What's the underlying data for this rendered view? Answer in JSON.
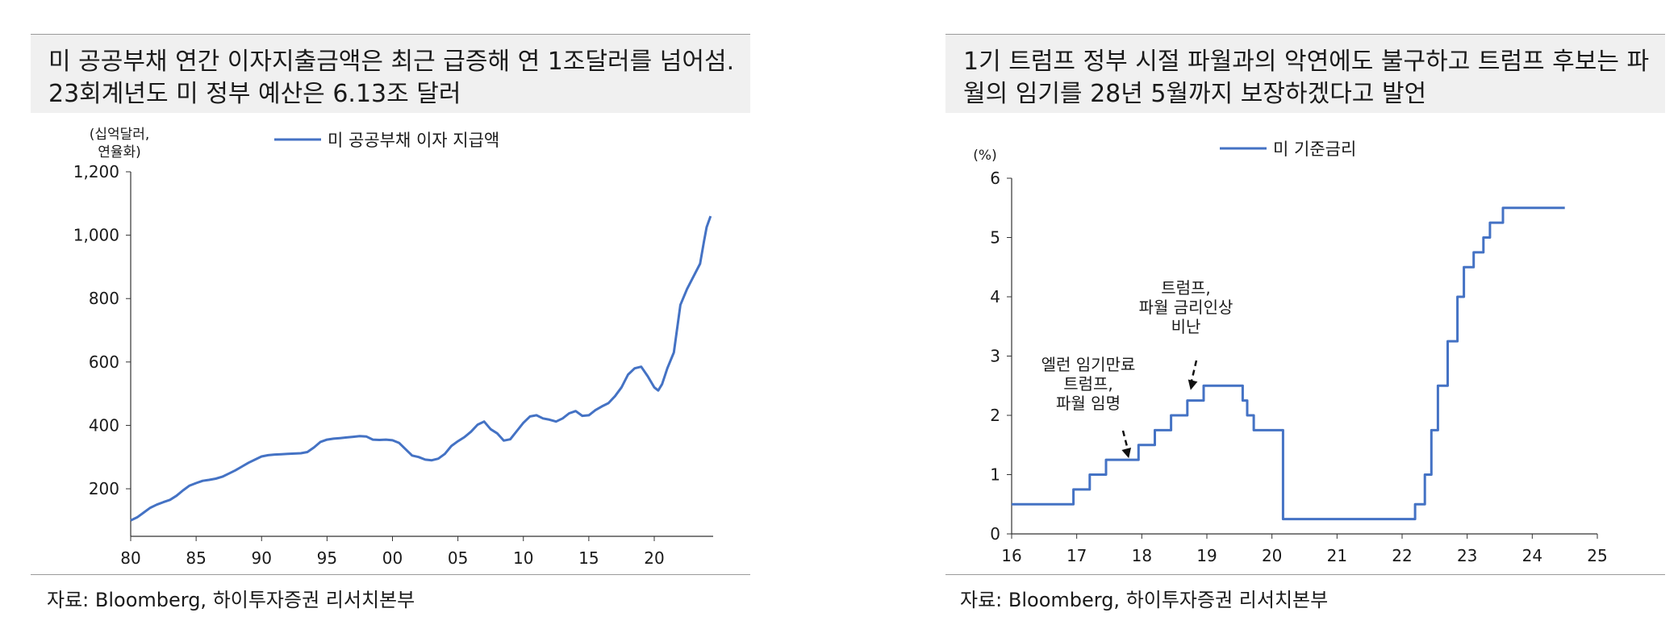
{
  "panels": {
    "left": {
      "title_line1": "미 공공부채 연간 이자지출금액은 최근 급증해 연 1조달러를 넘어섬.",
      "title_line2": "23회계년도 미 정부 예산은 6.13조 달러",
      "source": "자료: Bloomberg, 하이투자증권 리서치본부"
    },
    "right": {
      "title_line1": "1기 트럼프 정부 시절 파월과의 악연에도 불구하고 트럼프 후보는 파",
      "title_line2": "월의 임기를 28년 5월까지 보장하겠다고 발언",
      "source": "자료: Bloomberg, 하이투자증권 리서치본부"
    }
  },
  "chart_data": [
    {
      "type": "line",
      "ylabel": "(십억달러,\n연율화)",
      "ylabel_lines": [
        "(십억달러,",
        "연율화)"
      ],
      "legend": "미 공공부채 이자 지급액",
      "legend_position": "top-center",
      "color": "#4472c4",
      "xlim": [
        1980,
        2024.5
      ],
      "ylim": [
        50,
        1200
      ],
      "x_ticks": [
        1980,
        1985,
        1990,
        1995,
        2000,
        2005,
        2010,
        2015,
        2020
      ],
      "x_tick_labels": [
        "80",
        "85",
        "90",
        "95",
        "00",
        "05",
        "10",
        "15",
        "20"
      ],
      "y_ticks": [
        200,
        400,
        600,
        800,
        1000,
        1200
      ],
      "y_tick_labels": [
        "200",
        "400",
        "600",
        "800",
        "1,000",
        "1,200"
      ],
      "grid": false,
      "series": [
        {
          "name": "미 공공부채 이자 지급액",
          "x": [
            1980.0,
            1980.5,
            1981.0,
            1981.5,
            1982.0,
            1982.5,
            1983.0,
            1983.5,
            1984.0,
            1984.5,
            1985.0,
            1985.5,
            1986.0,
            1986.5,
            1987.0,
            1987.5,
            1988.0,
            1988.5,
            1989.0,
            1989.5,
            1990.0,
            1990.5,
            1991.0,
            1991.5,
            1992.0,
            1992.5,
            1993.0,
            1993.5,
            1994.0,
            1994.5,
            1995.0,
            1995.5,
            1996.0,
            1996.5,
            1997.0,
            1997.5,
            1998.0,
            1998.5,
            1999.0,
            1999.5,
            2000.0,
            2000.5,
            2001.0,
            2001.5,
            2002.0,
            2002.5,
            2003.0,
            2003.5,
            2004.0,
            2004.5,
            2005.0,
            2005.5,
            2006.0,
            2006.5,
            2007.0,
            2007.5,
            2008.0,
            2008.5,
            2009.0,
            2009.5,
            2010.0,
            2010.5,
            2011.0,
            2011.5,
            2012.0,
            2012.5,
            2013.0,
            2013.5,
            2014.0,
            2014.5,
            2015.0,
            2015.5,
            2016.0,
            2016.5,
            2017.0,
            2017.5,
            2018.0,
            2018.5,
            2019.0,
            2019.5,
            2020.0,
            2020.3,
            2020.6,
            2021.0,
            2021.5,
            2022.0,
            2022.5,
            2023.0,
            2023.5,
            2023.8,
            2024.0,
            2024.3
          ],
          "values": [
            100,
            110,
            125,
            140,
            150,
            158,
            165,
            178,
            195,
            210,
            218,
            225,
            228,
            232,
            238,
            248,
            258,
            270,
            282,
            292,
            302,
            306,
            308,
            309,
            310,
            311,
            312,
            316,
            330,
            348,
            355,
            358,
            360,
            362,
            364,
            366,
            365,
            355,
            354,
            355,
            353,
            345,
            325,
            305,
            300,
            292,
            290,
            295,
            310,
            335,
            350,
            363,
            380,
            402,
            412,
            388,
            375,
            352,
            356,
            382,
            408,
            428,
            432,
            422,
            418,
            412,
            422,
            438,
            445,
            430,
            432,
            448,
            460,
            470,
            492,
            520,
            560,
            580,
            585,
            555,
            520,
            510,
            530,
            580,
            630,
            780,
            830,
            870,
            910,
            980,
            1025,
            1060
          ]
        }
      ]
    },
    {
      "type": "line",
      "ylabel": "(%)",
      "legend": "미 기준금리",
      "legend_position": "top-center",
      "color": "#4472c4",
      "xlim": [
        2016,
        2025
      ],
      "ylim": [
        0,
        6
      ],
      "x_ticks": [
        2016,
        2017,
        2018,
        2019,
        2020,
        2021,
        2022,
        2023,
        2024,
        2025
      ],
      "x_tick_labels": [
        "16",
        "17",
        "18",
        "19",
        "20",
        "21",
        "22",
        "23",
        "24",
        "25"
      ],
      "y_ticks": [
        0,
        1,
        2,
        3,
        4,
        5,
        6
      ],
      "y_tick_labels": [
        "0",
        "1",
        "2",
        "3",
        "4",
        "5",
        "6"
      ],
      "grid": false,
      "step": true,
      "series": [
        {
          "name": "미 기준금리",
          "x": [
            2016.0,
            2016.95,
            2017.2,
            2017.45,
            2017.95,
            2018.2,
            2018.45,
            2018.7,
            2018.95,
            2019.55,
            2019.62,
            2019.72,
            2019.8,
            2020.17,
            2020.22,
            2022.2,
            2022.35,
            2022.45,
            2022.55,
            2022.7,
            2022.85,
            2022.95,
            2023.1,
            2023.25,
            2023.35,
            2023.55,
            2024.5
          ],
          "values": [
            0.5,
            0.75,
            1.0,
            1.25,
            1.5,
            1.75,
            2.0,
            2.25,
            2.5,
            2.25,
            2.0,
            1.75,
            1.75,
            0.25,
            0.25,
            0.5,
            1.0,
            1.75,
            2.5,
            3.25,
            4.0,
            4.5,
            4.75,
            5.0,
            5.25,
            5.5,
            5.5
          ]
        }
      ],
      "annotations": [
        {
          "lines": [
            "엘런 임기만료",
            "트럼프,",
            "파월 임명"
          ],
          "x": 2017.8,
          "y": 1.25
        },
        {
          "lines": [
            "트럼프,",
            "파월 금리인상",
            "비난"
          ],
          "x": 2018.75,
          "y": 2.4
        }
      ]
    }
  ]
}
